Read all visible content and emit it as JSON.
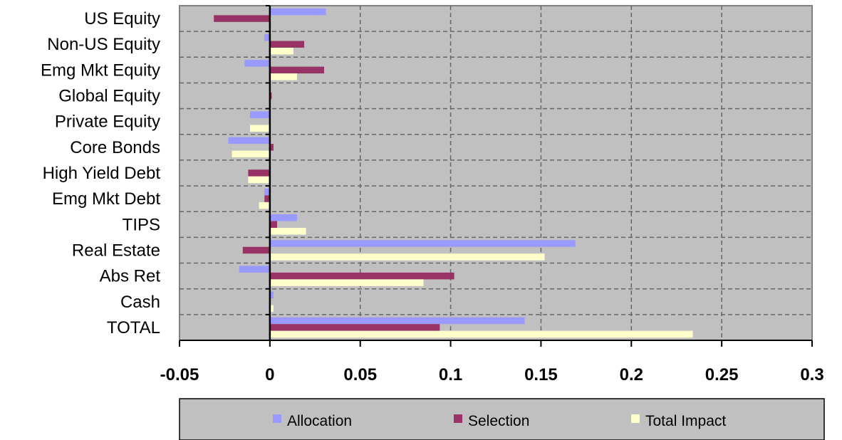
{
  "chart_data": {
    "type": "bar",
    "orientation": "horizontal",
    "categories": [
      "US Equity",
      "Non-US Equity",
      "Emg Mkt Equity",
      "Global Equity",
      "Private Equity",
      "Core Bonds",
      "High Yield Debt",
      "Emg Mkt Debt",
      "TIPS",
      "Real Estate",
      "Abs Ret",
      "Cash",
      "TOTAL"
    ],
    "series": [
      {
        "name": "Allocation",
        "color": "#9999FF",
        "values": [
          0.031,
          -0.003,
          -0.014,
          0.0,
          -0.011,
          -0.023,
          0.0,
          -0.003,
          0.015,
          0.169,
          -0.017,
          0.002,
          0.141
        ]
      },
      {
        "name": "Selection",
        "color": "#993366",
        "values": [
          -0.031,
          0.019,
          0.03,
          0.001,
          0.0,
          0.002,
          -0.012,
          -0.003,
          0.004,
          -0.015,
          0.102,
          0.0,
          0.094
        ]
      },
      {
        "name": "Total Impact",
        "color": "#FFFFCC",
        "values": [
          0.0,
          0.013,
          0.015,
          0.0,
          -0.011,
          -0.021,
          -0.012,
          -0.006,
          0.02,
          0.152,
          0.085,
          0.002,
          0.234
        ]
      }
    ],
    "xlim": [
      -0.05,
      0.3
    ],
    "xticks": [
      "-0.05",
      "0",
      "0.05",
      "0.1",
      "0.15",
      "0.2",
      "0.25",
      "0.3"
    ],
    "xtick_values": [
      -0.05,
      0,
      0.05,
      0.1,
      0.15,
      0.2,
      0.25,
      0.3
    ],
    "grid": true,
    "plot_background": "#C0C0C0",
    "legend_position": "bottom",
    "title": "",
    "xlabel": "",
    "ylabel": ""
  }
}
